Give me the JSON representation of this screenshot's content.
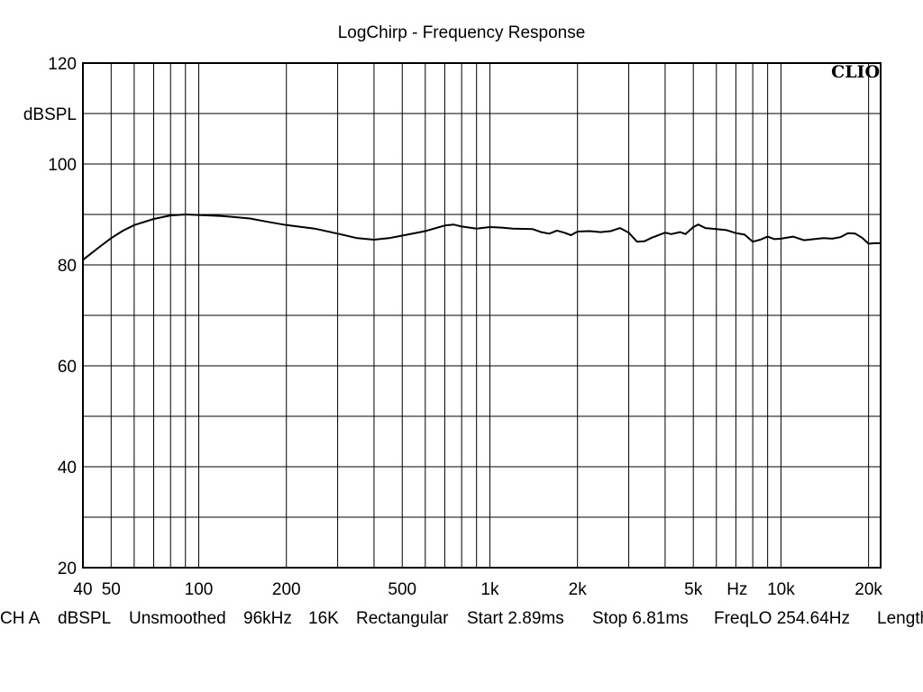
{
  "chart_data": {
    "type": "line",
    "title": "LogChirp - Frequency Response",
    "xlabel": "Hz",
    "ylabel": "dBSPL",
    "brand": "CLIO",
    "x_scale": "log",
    "xlim": [
      40,
      22000
    ],
    "ylim": [
      20,
      120
    ],
    "grid": true,
    "x_ticks": [
      {
        "value": 40,
        "label": "40"
      },
      {
        "value": 50,
        "label": "50"
      },
      {
        "value": 100,
        "label": "100"
      },
      {
        "value": 200,
        "label": "200"
      },
      {
        "value": 500,
        "label": "500"
      },
      {
        "value": 1000,
        "label": "1k"
      },
      {
        "value": 2000,
        "label": "2k"
      },
      {
        "value": 5000,
        "label": "5k"
      },
      {
        "value": 10000,
        "label": "10k"
      },
      {
        "value": 20000,
        "label": "20k"
      }
    ],
    "y_ticks": [
      {
        "value": 20,
        "label": "20"
      },
      {
        "value": 40,
        "label": "40"
      },
      {
        "value": 60,
        "label": "60"
      },
      {
        "value": 80,
        "label": "80"
      },
      {
        "value": 100,
        "label": "100"
      },
      {
        "value": 120,
        "label": "120"
      }
    ],
    "series": [
      {
        "color": "#000000",
        "points": [
          [
            40,
            81.0
          ],
          [
            45,
            83.3
          ],
          [
            50,
            85.3
          ],
          [
            55,
            86.8
          ],
          [
            60,
            87.9
          ],
          [
            70,
            89.1
          ],
          [
            80,
            89.8
          ],
          [
            90,
            90.0
          ],
          [
            100,
            89.9
          ],
          [
            120,
            89.7
          ],
          [
            150,
            89.2
          ],
          [
            170,
            88.6
          ],
          [
            200,
            87.9
          ],
          [
            250,
            87.2
          ],
          [
            300,
            86.2
          ],
          [
            350,
            85.3
          ],
          [
            400,
            85.0
          ],
          [
            450,
            85.3
          ],
          [
            500,
            85.8
          ],
          [
            600,
            86.7
          ],
          [
            700,
            87.8
          ],
          [
            750,
            88.0
          ],
          [
            800,
            87.6
          ],
          [
            900,
            87.2
          ],
          [
            1000,
            87.5
          ],
          [
            1100,
            87.4
          ],
          [
            1200,
            87.2
          ],
          [
            1400,
            87.1
          ],
          [
            1500,
            86.5
          ],
          [
            1600,
            86.2
          ],
          [
            1700,
            86.8
          ],
          [
            1800,
            86.4
          ],
          [
            1900,
            85.9
          ],
          [
            2000,
            86.6
          ],
          [
            2200,
            86.7
          ],
          [
            2400,
            86.5
          ],
          [
            2600,
            86.7
          ],
          [
            2800,
            87.3
          ],
          [
            3000,
            86.4
          ],
          [
            3200,
            84.6
          ],
          [
            3400,
            84.7
          ],
          [
            3600,
            85.4
          ],
          [
            4000,
            86.4
          ],
          [
            4200,
            86.1
          ],
          [
            4500,
            86.5
          ],
          [
            4700,
            86.1
          ],
          [
            5000,
            87.5
          ],
          [
            5200,
            88.0
          ],
          [
            5500,
            87.3
          ],
          [
            6000,
            87.1
          ],
          [
            6500,
            86.9
          ],
          [
            7000,
            86.3
          ],
          [
            7500,
            86.0
          ],
          [
            8000,
            84.6
          ],
          [
            8500,
            85.0
          ],
          [
            9000,
            85.6
          ],
          [
            9500,
            85.1
          ],
          [
            10000,
            85.2
          ],
          [
            11000,
            85.6
          ],
          [
            12000,
            84.9
          ],
          [
            13000,
            85.1
          ],
          [
            14000,
            85.3
          ],
          [
            15000,
            85.2
          ],
          [
            16000,
            85.5
          ],
          [
            17000,
            86.3
          ],
          [
            18000,
            86.2
          ],
          [
            19000,
            85.4
          ],
          [
            20000,
            84.2
          ],
          [
            21000,
            84.3
          ],
          [
            22000,
            84.3
          ]
        ]
      }
    ]
  },
  "status_bar": {
    "channel": "CH A",
    "units": "dBSPL",
    "smoothing": "Unsmoothed",
    "sample_rate": "96kHz",
    "fft_size": "16K",
    "window": "Rectangular",
    "start": "Start 2.89ms",
    "stop": "Stop 6.81ms",
    "freq_lo": "FreqLO 254.64Hz",
    "length": "Length"
  }
}
